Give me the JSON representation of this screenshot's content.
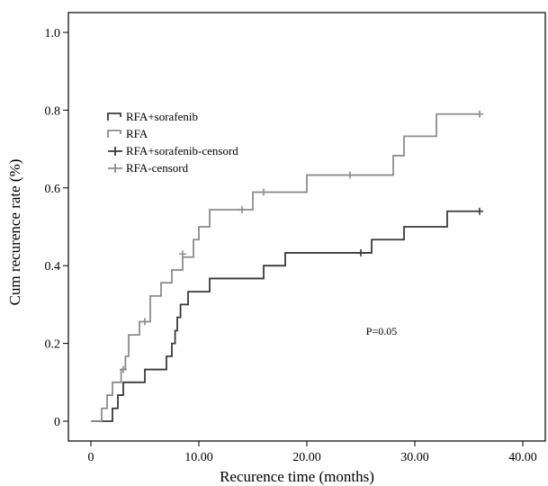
{
  "chart_data": {
    "type": "line",
    "subtype": "kaplan-meier step",
    "xlabel": "Recurence time (months)",
    "ylabel": "Cum recurence rate (%)",
    "xlim": [
      0,
      40
    ],
    "ylim": [
      0,
      1.0
    ],
    "x_ticks": [
      "0",
      "10.00",
      "20.00",
      "30.00",
      "40.00"
    ],
    "x_tick_values": [
      0,
      10,
      20,
      30,
      40
    ],
    "y_ticks": [
      "0",
      "0.2",
      "0.4",
      "0.6",
      "0.8",
      "1.0"
    ],
    "y_tick_values": [
      0,
      0.2,
      0.4,
      0.6,
      0.8,
      1.0
    ],
    "grid": false,
    "legend_position": "top-left",
    "annotation": "P=0.05",
    "legend": [
      {
        "label": "RFA+sorafenib",
        "marker": "step"
      },
      {
        "label": "RFA",
        "marker": "step"
      },
      {
        "label": "RFA+sorafenib-censord",
        "marker": "cross"
      },
      {
        "label": "RFA-censord",
        "marker": "cross"
      }
    ],
    "series": [
      {
        "name": "RFA+sorafenib",
        "color": "#3a3a3a",
        "steps": [
          [
            0,
            0
          ],
          [
            2.0,
            0.033
          ],
          [
            2.5,
            0.067
          ],
          [
            3.0,
            0.1
          ],
          [
            5.0,
            0.133
          ],
          [
            7.0,
            0.167
          ],
          [
            7.5,
            0.2
          ],
          [
            7.8,
            0.233
          ],
          [
            8.0,
            0.267
          ],
          [
            8.3,
            0.3
          ],
          [
            9.0,
            0.333
          ],
          [
            11.0,
            0.367
          ],
          [
            16.0,
            0.4
          ],
          [
            18.0,
            0.433
          ],
          [
            26.0,
            0.467
          ],
          [
            29.0,
            0.5
          ],
          [
            33.0,
            0.54
          ],
          [
            36.0,
            0.54
          ]
        ],
        "censored": [
          [
            25.0,
            0.433
          ],
          [
            36.0,
            0.54
          ]
        ]
      },
      {
        "name": "RFA",
        "color": "#8c8c8c",
        "steps": [
          [
            0,
            0
          ],
          [
            1.0,
            0.033
          ],
          [
            1.5,
            0.067
          ],
          [
            2.0,
            0.1
          ],
          [
            2.8,
            0.133
          ],
          [
            3.2,
            0.167
          ],
          [
            3.5,
            0.222
          ],
          [
            4.5,
            0.256
          ],
          [
            5.5,
            0.322
          ],
          [
            6.5,
            0.356
          ],
          [
            7.5,
            0.389
          ],
          [
            8.5,
            0.422
          ],
          [
            9.5,
            0.467
          ],
          [
            10.0,
            0.5
          ],
          [
            11.0,
            0.544
          ],
          [
            15.0,
            0.589
          ],
          [
            20.0,
            0.633
          ],
          [
            28.0,
            0.683
          ],
          [
            29.0,
            0.733
          ],
          [
            32.0,
            0.79
          ],
          [
            36.0,
            0.79
          ]
        ],
        "censored": [
          [
            3.0,
            0.133
          ],
          [
            5.0,
            0.256
          ],
          [
            8.5,
            0.43
          ],
          [
            14.0,
            0.544
          ],
          [
            16.0,
            0.589
          ],
          [
            24.0,
            0.633
          ],
          [
            36.0,
            0.79
          ]
        ]
      }
    ]
  }
}
